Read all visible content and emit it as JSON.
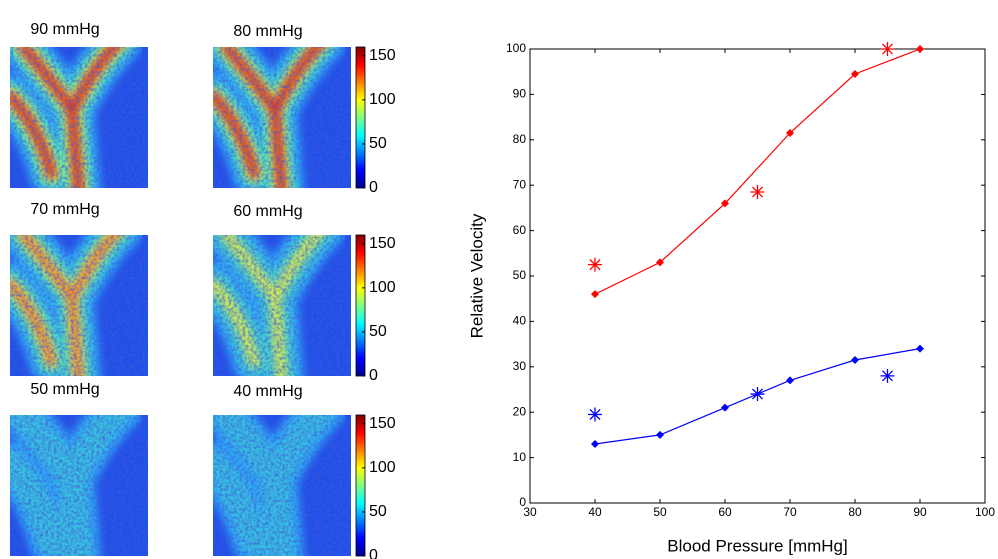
{
  "chart_data": [
    {
      "type": "heatmap",
      "panel_titles": [
        "90 mmHg",
        "80 mmHg",
        "70 mmHg",
        "60 mmHg",
        "50 mmHg",
        "40 mmHg"
      ],
      "clim": [
        0,
        160
      ],
      "cticks": [
        0,
        50,
        100,
        150
      ]
    },
    {
      "type": "line",
      "xlabel": "Blood Pressure [mmHg]",
      "ylabel": "Relative Velocity",
      "xlim": [
        30,
        100
      ],
      "xticks": [
        30,
        40,
        50,
        60,
        70,
        80,
        90,
        100
      ],
      "ylim": [
        0,
        100
      ],
      "yticks": [
        0,
        10,
        20,
        30,
        40,
        50,
        60,
        70,
        80,
        90,
        100
      ],
      "series": [
        {
          "color": "#ff0000",
          "style": "line",
          "x": [
            40,
            50,
            60,
            70,
            80,
            90
          ],
          "values": [
            46,
            53,
            66,
            81.5,
            94.5,
            100
          ]
        },
        {
          "color": "#ff0000",
          "style": "star",
          "x": [
            40,
            65,
            85
          ],
          "values": [
            52.5,
            68.5,
            100
          ]
        },
        {
          "color": "#0000ff",
          "style": "line",
          "x": [
            40,
            50,
            60,
            70,
            80,
            90
          ],
          "values": [
            13,
            15,
            21,
            27,
            31.5,
            34
          ]
        },
        {
          "color": "#0000ff",
          "style": "star",
          "x": [
            40,
            65,
            85
          ],
          "values": [
            19.5,
            24,
            28
          ]
        }
      ]
    }
  ]
}
